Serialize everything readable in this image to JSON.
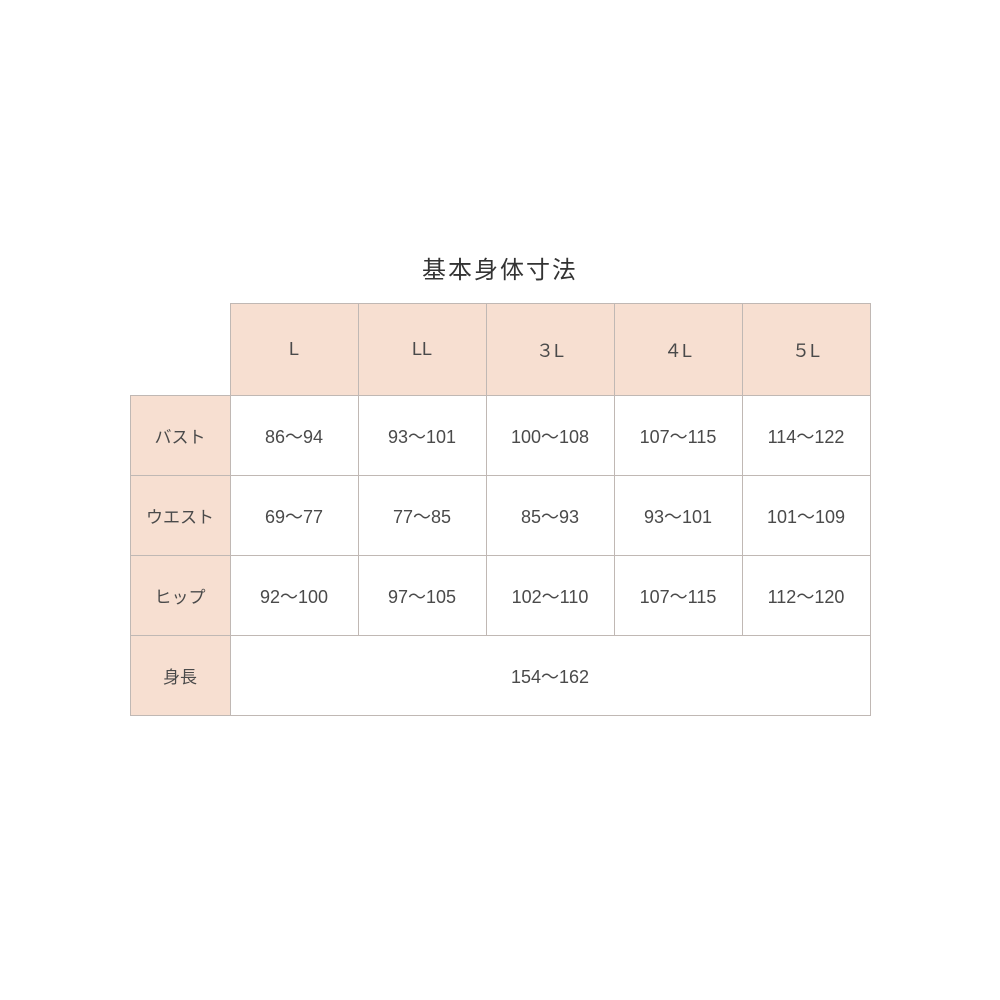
{
  "title": "基本身体寸法",
  "table": {
    "header_bg": "#f7dfd1",
    "cell_bg": "#ffffff",
    "border_color": "#c0b8b4",
    "text_color": "#4a4a4a",
    "title_fontsize": 24,
    "cell_fontsize": 18,
    "sizes": [
      "L",
      "LL",
      "３L",
      "４L",
      "５L"
    ],
    "rows": [
      {
        "label": "バスト",
        "values": [
          "86～94",
          "93～101",
          "100～108",
          "107～115",
          "114～122"
        ]
      },
      {
        "label": "ウエスト",
        "values": [
          "69～77",
          "77～85",
          "85～93",
          "93～101",
          "101～109"
        ]
      },
      {
        "label": "ヒップ",
        "values": [
          "92～100",
          "97～105",
          "102～110",
          "107～115",
          "112～120"
        ]
      }
    ],
    "height_row": {
      "label": "身長",
      "value": "154～162"
    }
  }
}
